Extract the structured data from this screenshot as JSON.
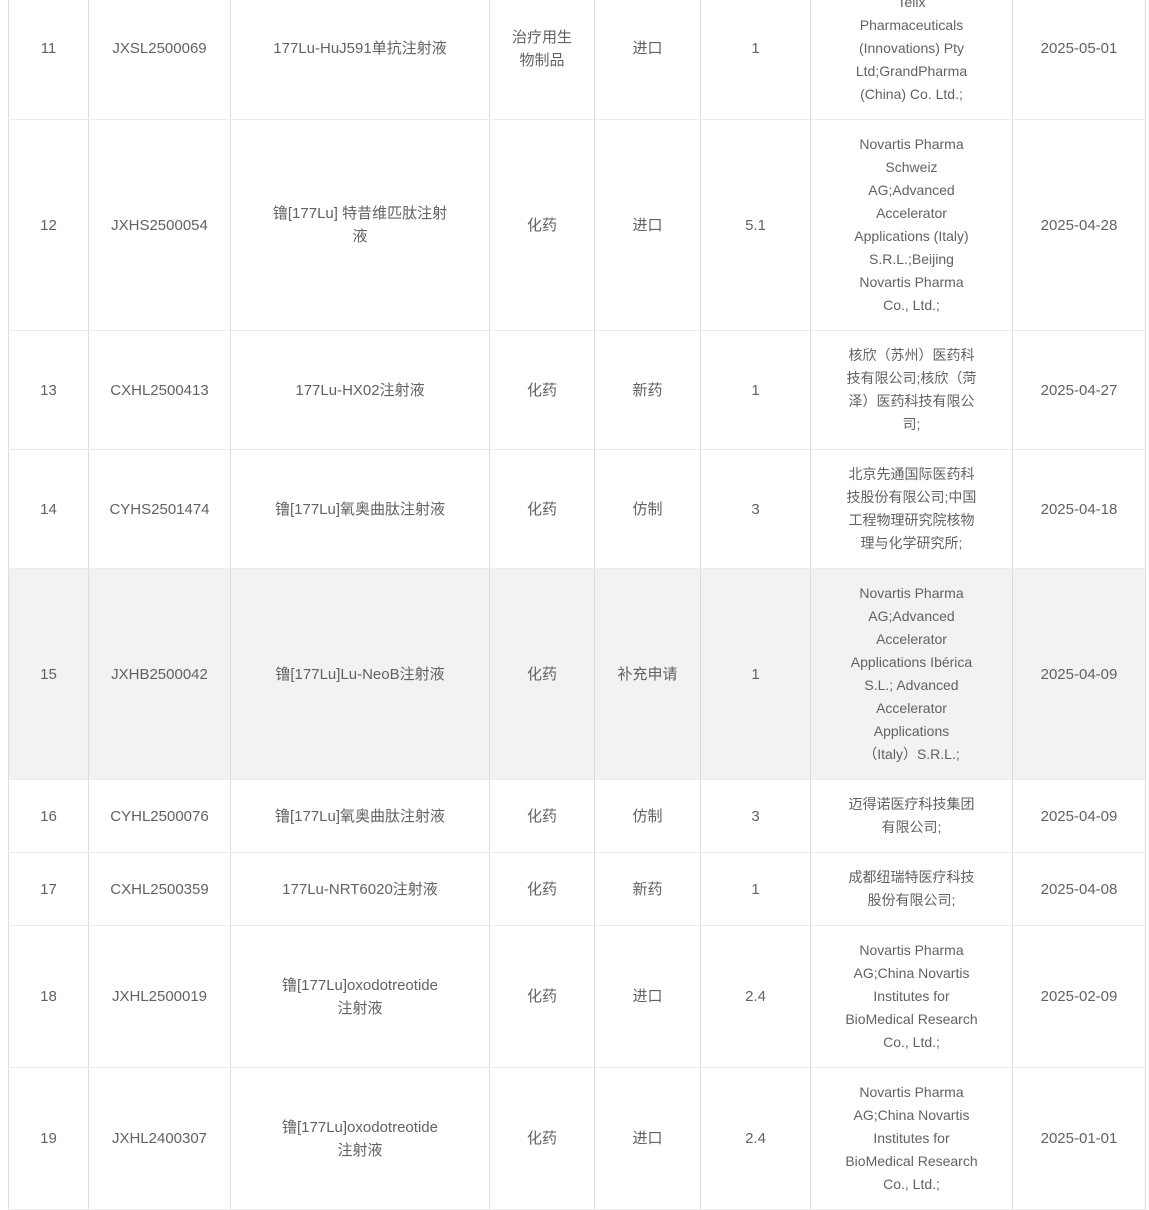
{
  "colors": {
    "text": "#606266",
    "border_vertical": "#dcdcdc",
    "border_horizontal": "#ececec",
    "row_bg": "#ffffff",
    "highlighted_row_bg": "#f2f2f2"
  },
  "table": {
    "rows": [
      {
        "index": "11",
        "acceptance_no": "JXSL2500069",
        "drug_name": "177Lu-HuJ591单抗注射液",
        "drug_type": "治疗用生\n物制品",
        "apply_type": "进口",
        "category": "1",
        "companies": "Telix\nPharmaceuticals\n(Innovations) Pty\nLtd;GrandPharma\n(China) Co. Ltd.;",
        "date": "2025-05-01",
        "highlighted": false
      },
      {
        "index": "12",
        "acceptance_no": "JXHS2500054",
        "drug_name": "镥[177Lu] 特昔维匹肽注射\n液",
        "drug_type": "化药",
        "apply_type": "进口",
        "category": "5.1",
        "companies": "Novartis Pharma\nSchweiz\nAG;Advanced\nAccelerator\nApplications (Italy)\nS.R.L.;Beijing\nNovartis Pharma\nCo., Ltd.;",
        "date": "2025-04-28",
        "highlighted": false
      },
      {
        "index": "13",
        "acceptance_no": "CXHL2500413",
        "drug_name": "177Lu-HX02注射液",
        "drug_type": "化药",
        "apply_type": "新药",
        "category": "1",
        "companies": "核欣（苏州）医药科\n技有限公司;核欣（菏\n泽）医药科技有限公\n司;",
        "date": "2025-04-27",
        "highlighted": false
      },
      {
        "index": "14",
        "acceptance_no": "CYHS2501474",
        "drug_name": "镥[177Lu]氧奥曲肽注射液",
        "drug_type": "化药",
        "apply_type": "仿制",
        "category": "3",
        "companies": "北京先通国际医药科\n技股份有限公司;中国\n工程物理研究院核物\n理与化学研究所;",
        "date": "2025-04-18",
        "highlighted": false
      },
      {
        "index": "15",
        "acceptance_no": "JXHB2500042",
        "drug_name": "镥[177Lu]Lu-NeoB注射液",
        "drug_type": "化药",
        "apply_type": "补充申请",
        "category": "1",
        "companies": "Novartis Pharma\nAG;Advanced\nAccelerator\nApplications Ibérica\nS.L.; Advanced\nAccelerator\nApplications\n（Italy）S.R.L.;",
        "date": "2025-04-09",
        "highlighted": true
      },
      {
        "index": "16",
        "acceptance_no": "CYHL2500076",
        "drug_name": "镥[177Lu]氧奥曲肽注射液",
        "drug_type": "化药",
        "apply_type": "仿制",
        "category": "3",
        "companies": "迈得诺医疗科技集团\n有限公司;",
        "date": "2025-04-09",
        "highlighted": false
      },
      {
        "index": "17",
        "acceptance_no": "CXHL2500359",
        "drug_name": "177Lu-NRT6020注射液",
        "drug_type": "化药",
        "apply_type": "新药",
        "category": "1",
        "companies": "成都纽瑞特医疗科技\n股份有限公司;",
        "date": "2025-04-08",
        "highlighted": false
      },
      {
        "index": "18",
        "acceptance_no": "JXHL2500019",
        "drug_name": "镥[177Lu]oxodotreotide\n注射液",
        "drug_type": "化药",
        "apply_type": "进口",
        "category": "2.4",
        "companies": "Novartis Pharma\nAG;China Novartis\nInstitutes for\nBioMedical Research\nCo., Ltd.;",
        "date": "2025-02-09",
        "highlighted": false
      },
      {
        "index": "19",
        "acceptance_no": "JXHL2400307",
        "drug_name": "镥[177Lu]oxodotreotide\n注射液",
        "drug_type": "化药",
        "apply_type": "进口",
        "category": "2.4",
        "companies": "Novartis Pharma\nAG;China Novartis\nInstitutes for\nBioMedical Research\nCo., Ltd.;",
        "date": "2025-01-01",
        "highlighted": false
      }
    ]
  }
}
